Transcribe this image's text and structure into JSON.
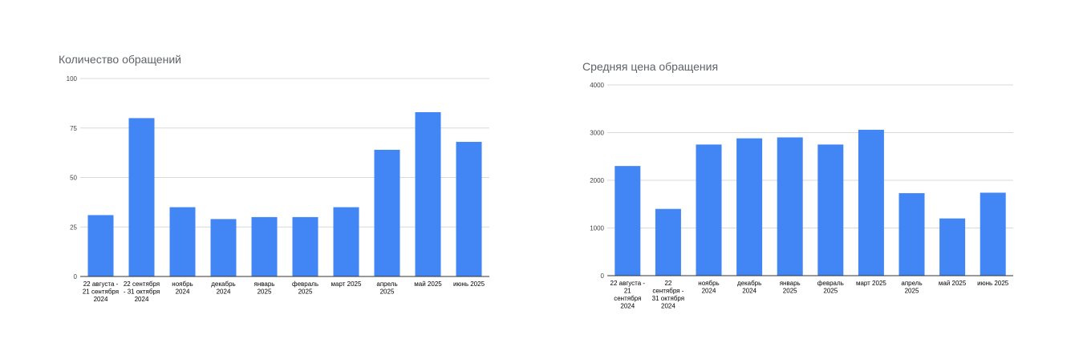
{
  "chart_data": [
    {
      "type": "bar",
      "title": "Количество обращений",
      "xlabel": "",
      "ylabel": "",
      "ylim": [
        0,
        100
      ],
      "yticks": [
        0,
        25,
        50,
        75,
        100
      ],
      "grid": true,
      "legend": "none",
      "color": "#4285f4",
      "categories": [
        [
          "22 августа -",
          "21 сентября",
          "2024"
        ],
        [
          "22 сентября",
          "- 31 октября",
          "2024"
        ],
        [
          "ноябрь",
          "2024"
        ],
        [
          "декабрь",
          "2024"
        ],
        [
          "январь",
          "2025"
        ],
        [
          "февраль",
          "2025"
        ],
        [
          "март 2025"
        ],
        [
          "апрель",
          "2025"
        ],
        [
          "май 2025"
        ],
        [
          "июнь 2025"
        ]
      ],
      "values": [
        31,
        80,
        35,
        29,
        30,
        30,
        35,
        64,
        83,
        68
      ]
    },
    {
      "type": "bar",
      "title": "Средняя цена обращения",
      "xlabel": "",
      "ylabel": "",
      "ylim": [
        0,
        4000
      ],
      "yticks": [
        0,
        1000,
        2000,
        3000,
        4000
      ],
      "grid": true,
      "legend": "none",
      "color": "#4285f4",
      "categories": [
        [
          "22 августа -",
          "21",
          "сентября",
          "2024"
        ],
        [
          "22",
          "сентября -",
          "31 октября",
          "2024"
        ],
        [
          "ноябрь",
          "2024"
        ],
        [
          "декабрь",
          "2024"
        ],
        [
          "январь",
          "2025"
        ],
        [
          "февраль",
          "2025"
        ],
        [
          "март 2025"
        ],
        [
          "апрель",
          "2025"
        ],
        [
          "май 2025"
        ],
        [
          "июнь 2025"
        ]
      ],
      "values": [
        2300,
        1400,
        2750,
        2880,
        2900,
        2750,
        3060,
        1730,
        1200,
        1740
      ]
    }
  ]
}
